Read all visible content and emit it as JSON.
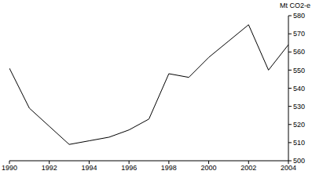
{
  "chart_data": {
    "type": "line",
    "y_label": "Mt CO2-e",
    "x": [
      1990,
      1991,
      1992,
      1993,
      1994,
      1995,
      1996,
      1997,
      1998,
      1999,
      2000,
      2001,
      2002,
      2003,
      2004
    ],
    "values": [
      551,
      529,
      519,
      509,
      511,
      513,
      517,
      523,
      548,
      546,
      557,
      566,
      575,
      550,
      564
    ],
    "color": "#000000",
    "xlim": [
      1990,
      2004
    ],
    "xticks": [
      1990,
      1992,
      1994,
      1996,
      1998,
      2000,
      2002,
      2004
    ],
    "ylim": [
      500,
      580
    ],
    "yticks": [
      500,
      510,
      520,
      530,
      540,
      550,
      560,
      570,
      580
    ],
    "grid": false
  }
}
